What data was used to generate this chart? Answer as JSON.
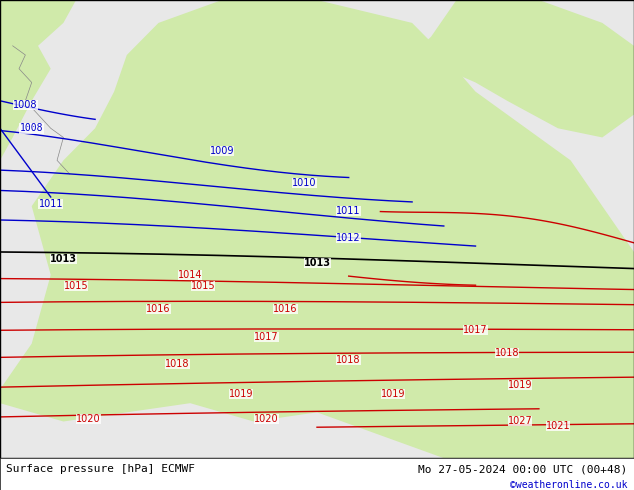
{
  "title_left": "Surface pressure [hPa] ECMWF",
  "title_right": "Mo 27-05-2024 00:00 UTC (00+48)",
  "credit": "©weatheronline.co.uk",
  "bg_color_land": "#d0eaaa",
  "bg_color_sea": "#e8e8e8",
  "bg_color_highlight": "#c8e898",
  "border_color": "#000000",
  "bottom_bar_color": "#ffffff",
  "contour_blue_color": "#0000cc",
  "contour_black_color": "#000000",
  "contour_red_color": "#cc0000",
  "coast_color": "#888888",
  "label_fontsize": 8,
  "footer_fontsize": 8,
  "credit_color": "#0000cc",
  "figsize": [
    6.34,
    4.9
  ],
  "dpi": 100,
  "pressure_levels": [
    1008,
    1009,
    1010,
    1011,
    1012,
    1013,
    1014,
    1015,
    1016,
    1017,
    1018,
    1019,
    1020,
    1021
  ],
  "blue_levels": [
    1008,
    1009,
    1010,
    1011,
    1012
  ],
  "black_levels": [
    1013
  ],
  "red_levels": [
    1014,
    1015,
    1016,
    1017,
    1018,
    1019,
    1020,
    1021
  ]
}
